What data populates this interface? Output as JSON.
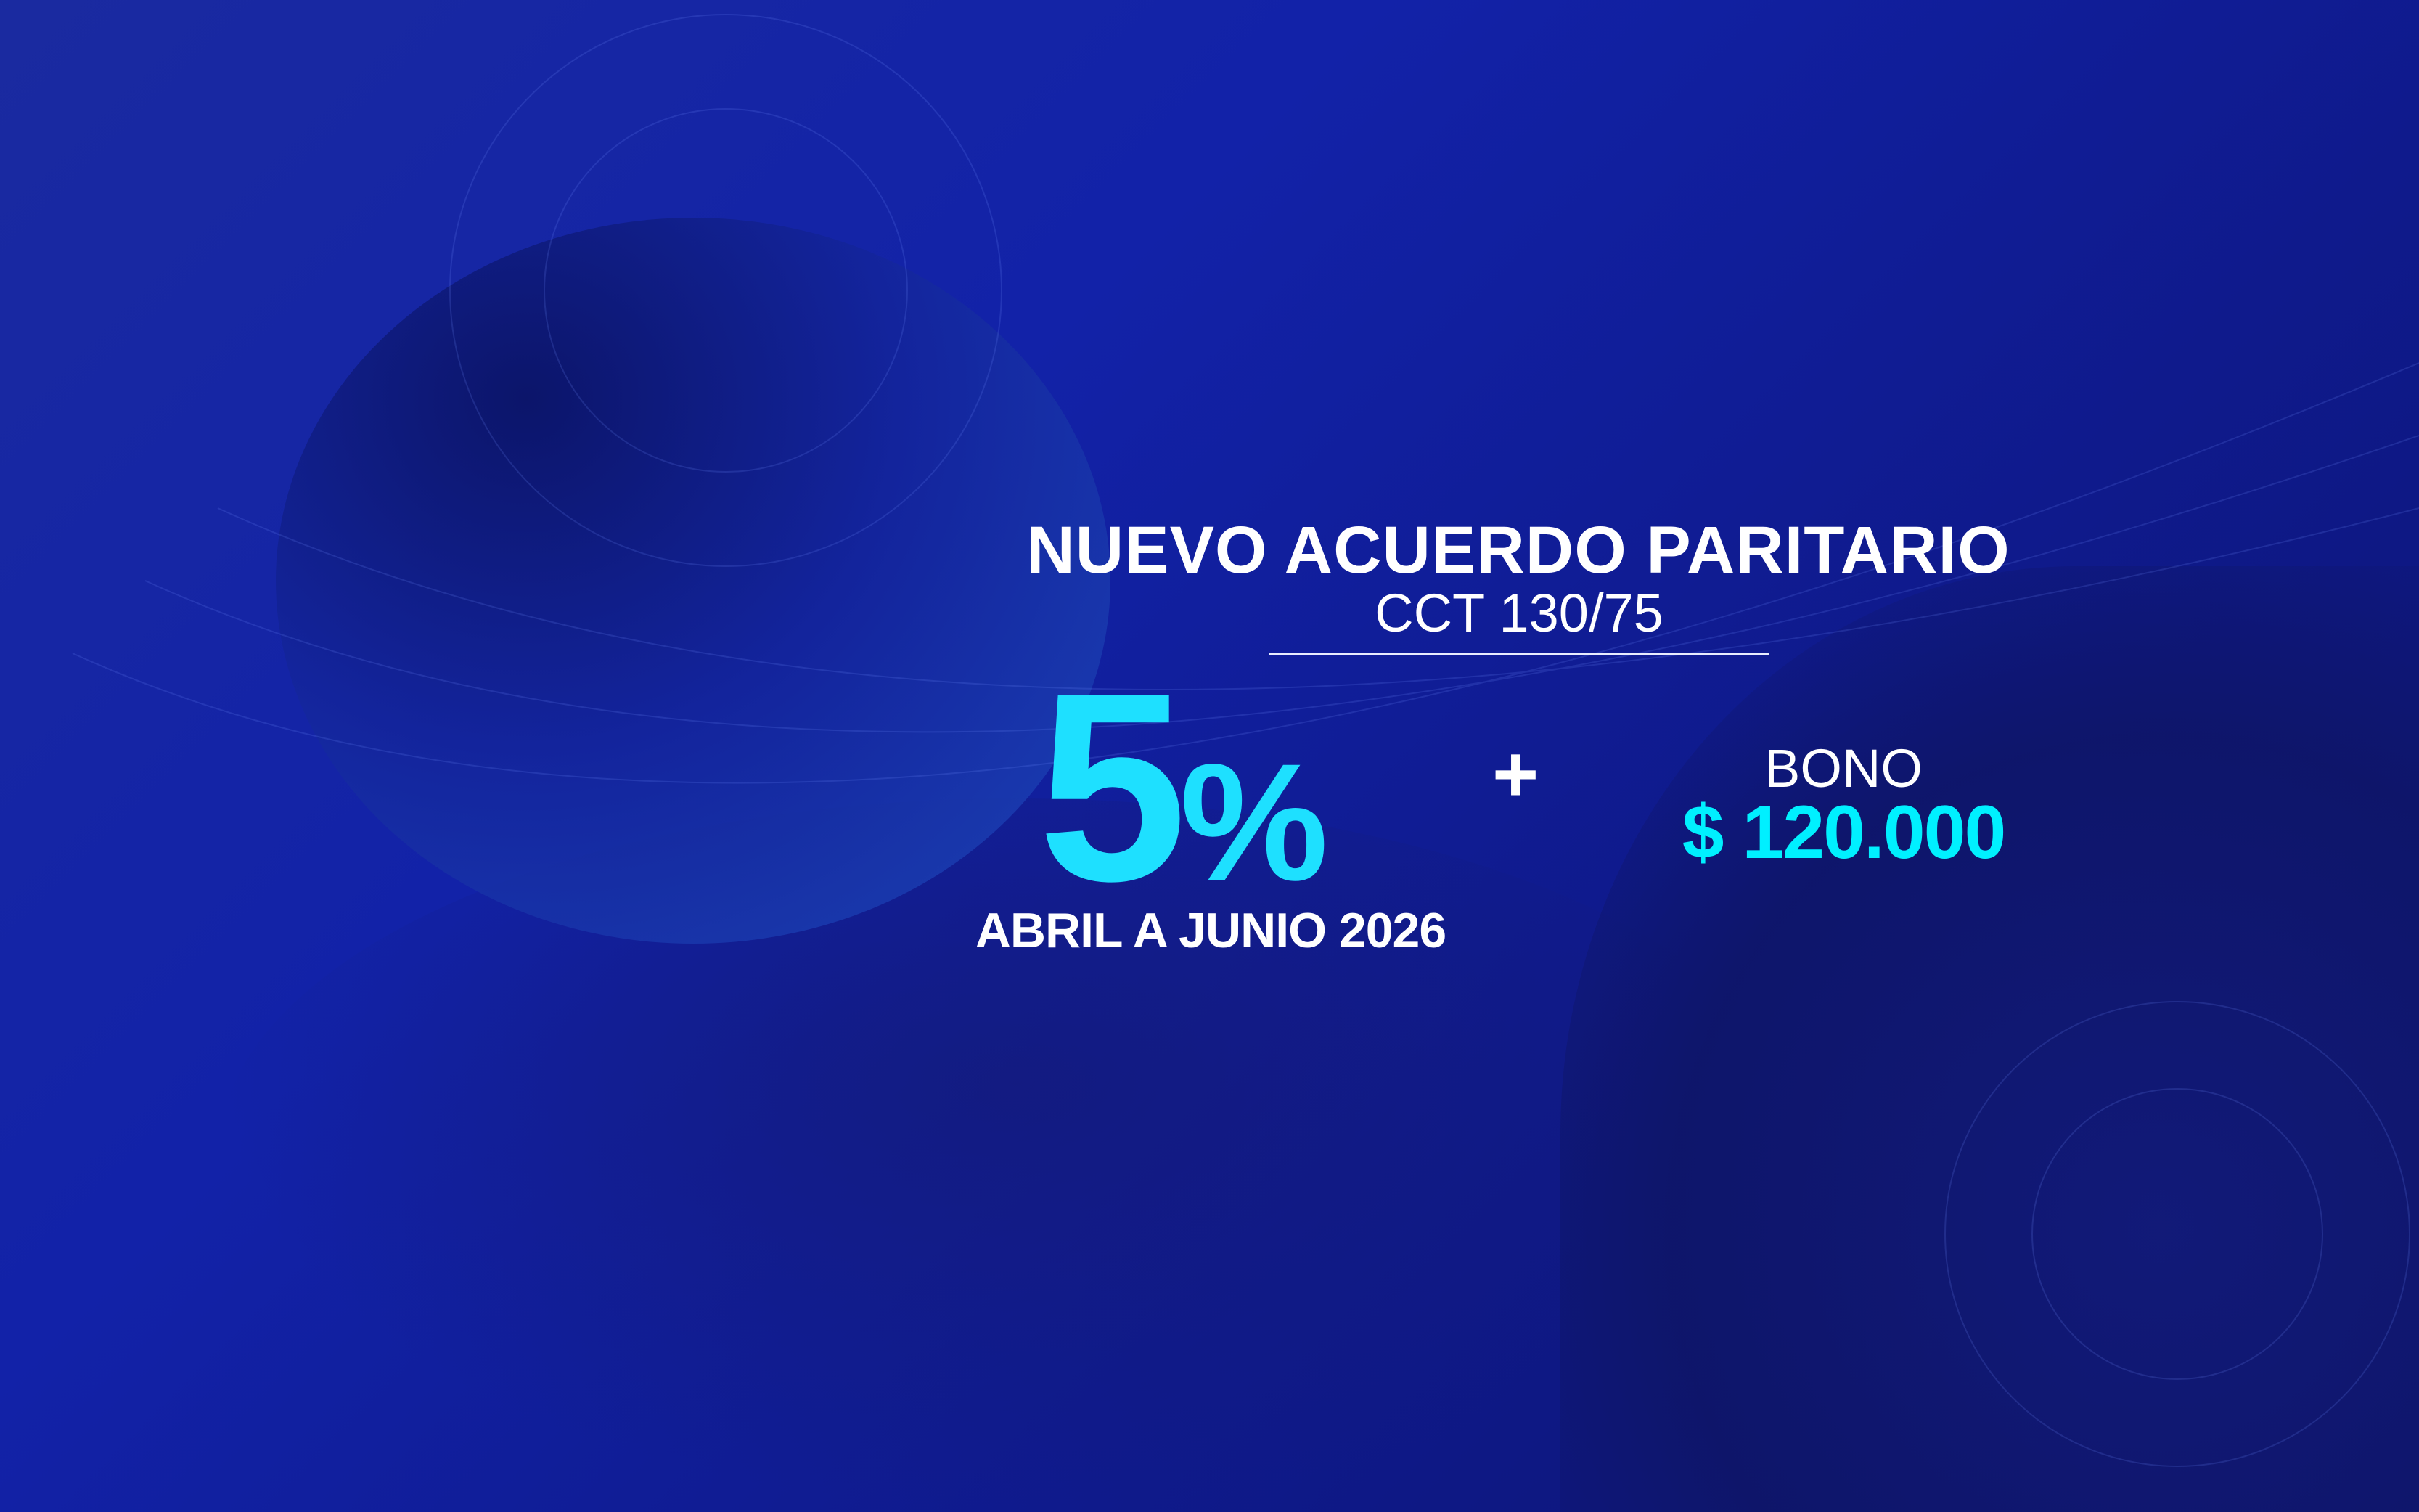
{
  "header": {
    "title": "NUEVO ACUERDO PARITARIO",
    "subtitle": "CCT 130/75"
  },
  "increase": {
    "value": "5",
    "unit": "%",
    "period": "ABRIL A JUNIO 2026"
  },
  "plus_sign": "+",
  "bonus": {
    "label": "BONO",
    "amount": "$ 120.000"
  },
  "colors": {
    "accent_percent": "#1ee0ff",
    "accent_amount": "#00f0ff",
    "text": "#ffffff",
    "background": "#1222a8"
  }
}
